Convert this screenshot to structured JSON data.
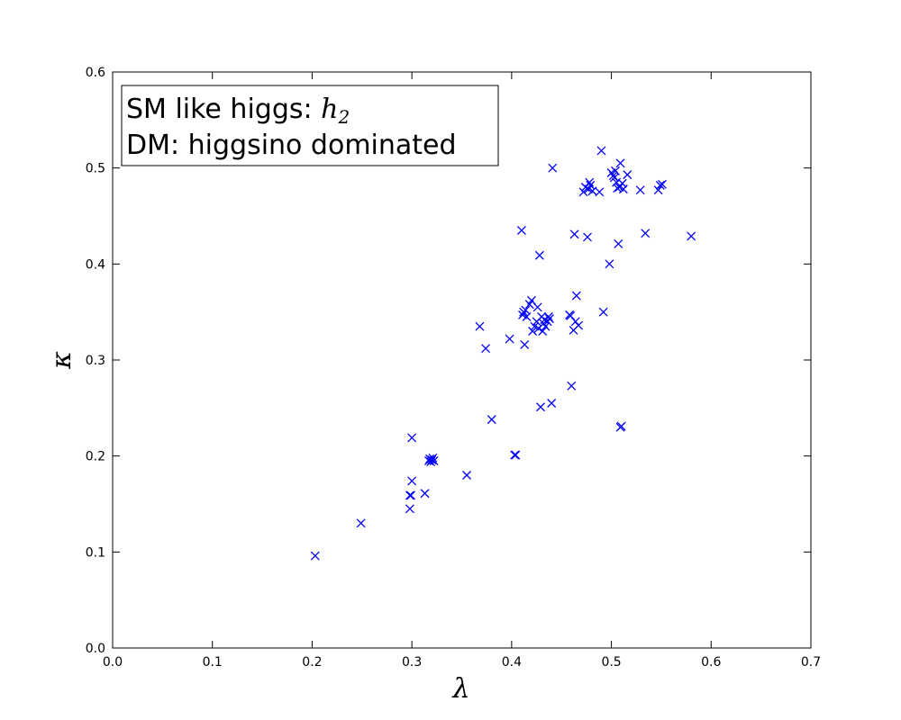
{
  "chart_data": {
    "type": "scatter",
    "xlabel": "λ",
    "ylabel": "κ",
    "xlim": [
      0.0,
      0.7
    ],
    "ylim": [
      0.0,
      0.6
    ],
    "xticks": [
      "0.0",
      "0.1",
      "0.2",
      "0.3",
      "0.4",
      "0.5",
      "0.6",
      "0.7"
    ],
    "yticks": [
      "0.0",
      "0.1",
      "0.2",
      "0.3",
      "0.4",
      "0.5",
      "0.6"
    ],
    "grid": false,
    "marker": "x",
    "color": "#0000ff",
    "annotation": {
      "line1_text": "SM like higgs: ",
      "line1_math": "h",
      "line1_sub": "2",
      "line2": "DM: higgsino dominated",
      "placement": "top-left"
    },
    "points": [
      [
        0.203,
        0.096
      ],
      [
        0.249,
        0.13
      ],
      [
        0.298,
        0.145
      ],
      [
        0.298,
        0.159
      ],
      [
        0.299,
        0.159
      ],
      [
        0.3,
        0.174
      ],
      [
        0.3,
        0.219
      ],
      [
        0.313,
        0.161
      ],
      [
        0.317,
        0.195
      ],
      [
        0.318,
        0.197
      ],
      [
        0.319,
        0.194
      ],
      [
        0.32,
        0.196
      ],
      [
        0.321,
        0.198
      ],
      [
        0.322,
        0.195
      ],
      [
        0.355,
        0.18
      ],
      [
        0.368,
        0.335
      ],
      [
        0.374,
        0.312
      ],
      [
        0.38,
        0.238
      ],
      [
        0.398,
        0.322
      ],
      [
        0.403,
        0.201
      ],
      [
        0.404,
        0.201
      ],
      [
        0.41,
        0.435
      ],
      [
        0.411,
        0.347
      ],
      [
        0.412,
        0.35
      ],
      [
        0.413,
        0.316
      ],
      [
        0.414,
        0.352
      ],
      [
        0.415,
        0.345
      ],
      [
        0.418,
        0.358
      ],
      [
        0.42,
        0.362
      ],
      [
        0.421,
        0.33
      ],
      [
        0.423,
        0.335
      ],
      [
        0.425,
        0.34
      ],
      [
        0.426,
        0.355
      ],
      [
        0.427,
        0.333
      ],
      [
        0.428,
        0.409
      ],
      [
        0.429,
        0.251
      ],
      [
        0.43,
        0.345
      ],
      [
        0.431,
        0.33
      ],
      [
        0.432,
        0.338
      ],
      [
        0.433,
        0.342
      ],
      [
        0.434,
        0.335
      ],
      [
        0.436,
        0.34
      ],
      [
        0.437,
        0.345
      ],
      [
        0.438,
        0.343
      ],
      [
        0.44,
        0.255
      ],
      [
        0.441,
        0.5
      ],
      [
        0.458,
        0.347
      ],
      [
        0.459,
        0.346
      ],
      [
        0.46,
        0.273
      ],
      [
        0.462,
        0.331
      ],
      [
        0.463,
        0.431
      ],
      [
        0.464,
        0.34
      ],
      [
        0.465,
        0.367
      ],
      [
        0.467,
        0.336
      ],
      [
        0.472,
        0.475
      ],
      [
        0.474,
        0.48
      ],
      [
        0.476,
        0.428
      ],
      [
        0.477,
        0.478
      ],
      [
        0.478,
        0.485
      ],
      [
        0.479,
        0.482
      ],
      [
        0.481,
        0.476
      ],
      [
        0.488,
        0.475
      ],
      [
        0.49,
        0.518
      ],
      [
        0.492,
        0.35
      ],
      [
        0.498,
        0.4
      ],
      [
        0.5,
        0.495
      ],
      [
        0.502,
        0.492
      ],
      [
        0.503,
        0.49
      ],
      [
        0.504,
        0.497
      ],
      [
        0.505,
        0.485
      ],
      [
        0.506,
        0.479
      ],
      [
        0.507,
        0.421
      ],
      [
        0.508,
        0.48
      ],
      [
        0.509,
        0.505
      ],
      [
        0.509,
        0.23
      ],
      [
        0.51,
        0.231
      ],
      [
        0.511,
        0.484
      ],
      [
        0.512,
        0.478
      ],
      [
        0.516,
        0.493
      ],
      [
        0.529,
        0.477
      ],
      [
        0.534,
        0.432
      ],
      [
        0.547,
        0.477
      ],
      [
        0.549,
        0.482
      ],
      [
        0.551,
        0.483
      ],
      [
        0.58,
        0.429
      ]
    ]
  }
}
